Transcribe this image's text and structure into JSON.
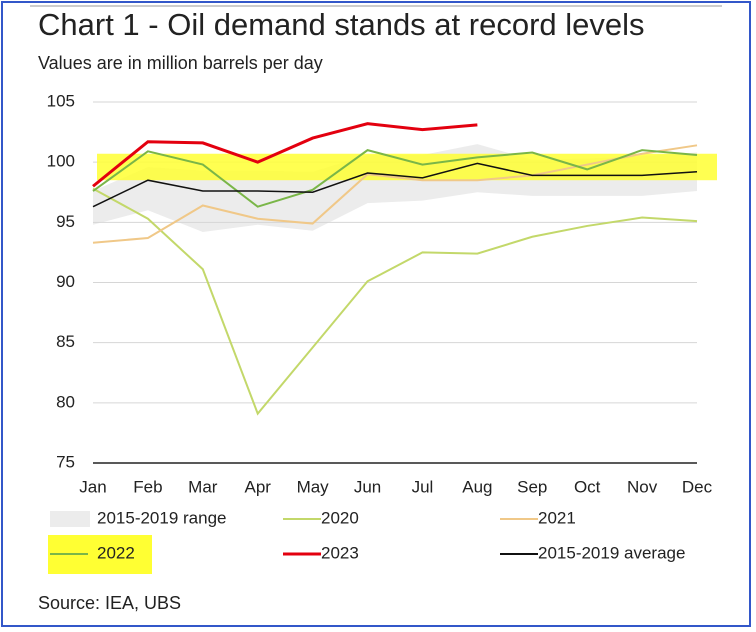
{
  "chart_data": {
    "type": "line",
    "title": "Chart 1 - Oil demand stands at record levels",
    "subtitle": "Values are in million barrels per day",
    "source": "Source: IEA, UBS",
    "categories": [
      "Jan",
      "Feb",
      "Mar",
      "Apr",
      "May",
      "Jun",
      "Jul",
      "Aug",
      "Sep",
      "Oct",
      "Nov",
      "Dec"
    ],
    "ylim": [
      75,
      105
    ],
    "yticks": [
      75,
      80,
      85,
      90,
      95,
      100,
      105
    ],
    "grid": true,
    "highlight": {
      "range": [
        98.5,
        100.7
      ],
      "color": "#ffff33"
    },
    "range": {
      "name": "2015-2019 range",
      "color": "#ececec",
      "low": [
        94.8,
        96.0,
        94.2,
        94.8,
        94.3,
        96.6,
        96.8,
        97.5,
        97.2,
        97.2,
        97.2,
        97.6
      ],
      "high": [
        97.6,
        99.6,
        99.3,
        99.3,
        99.2,
        100.6,
        100.6,
        101.5,
        100.2,
        100.3,
        100.5,
        100.8
      ]
    },
    "series": [
      {
        "name": "2020",
        "color": "#c3d86a",
        "values": [
          97.8,
          95.3,
          91.1,
          79.1,
          84.6,
          90.1,
          92.5,
          92.4,
          93.8,
          94.7,
          95.4,
          95.1
        ]
      },
      {
        "name": "2021",
        "color": "#f0c888",
        "values": [
          93.3,
          93.7,
          96.4,
          95.3,
          94.9,
          99.0,
          98.5,
          98.5,
          98.9,
          99.8,
          100.7,
          101.4
        ]
      },
      {
        "name": "2022",
        "color": "#7ab648",
        "values": [
          97.6,
          100.9,
          99.8,
          96.3,
          97.7,
          101.0,
          99.8,
          100.4,
          100.8,
          99.4,
          101.0,
          100.6
        ]
      },
      {
        "name": "2023",
        "color": "#e3000f",
        "values": [
          98.0,
          101.7,
          101.6,
          100.0,
          102.0,
          103.2,
          102.7,
          103.1,
          null,
          null,
          null,
          null
        ]
      },
      {
        "name": "2015-2019 average",
        "color": "#111111",
        "values": [
          96.3,
          98.5,
          97.6,
          97.6,
          97.5,
          99.1,
          98.7,
          99.9,
          98.9,
          98.9,
          98.9,
          99.2
        ]
      }
    ]
  }
}
